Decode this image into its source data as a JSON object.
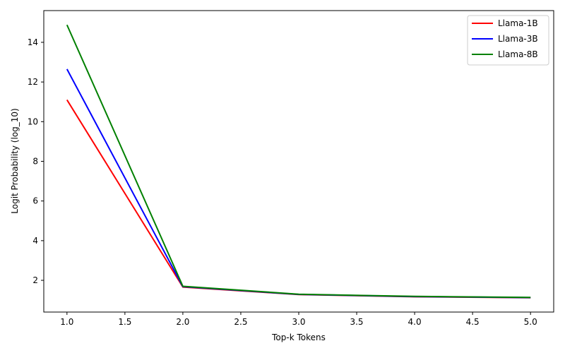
{
  "chart_data": {
    "type": "line",
    "title": "",
    "xlabel": "Top-k Tokens",
    "ylabel": "Logit Probability (log_10)",
    "xlim": [
      0.8,
      5.2
    ],
    "ylim": [
      0.4,
      15.6
    ],
    "x_ticks": [
      "1.0",
      "1.5",
      "2.0",
      "2.5",
      "3.0",
      "3.5",
      "4.0",
      "4.5",
      "5.0"
    ],
    "y_ticks": [
      "2",
      "4",
      "6",
      "8",
      "10",
      "12",
      "14"
    ],
    "x": [
      1,
      2,
      3,
      4,
      5
    ],
    "grid": false,
    "legend_position": "top-right",
    "series": [
      {
        "name": "Llama-1B",
        "color": "#ff0000",
        "values": [
          11.1,
          1.66,
          1.28,
          1.17,
          1.12
        ]
      },
      {
        "name": "Llama-3B",
        "color": "#0000ff",
        "values": [
          12.65,
          1.68,
          1.29,
          1.18,
          1.13
        ]
      },
      {
        "name": "Llama-8B",
        "color": "#008000",
        "values": [
          14.88,
          1.7,
          1.3,
          1.19,
          1.14
        ]
      }
    ]
  }
}
